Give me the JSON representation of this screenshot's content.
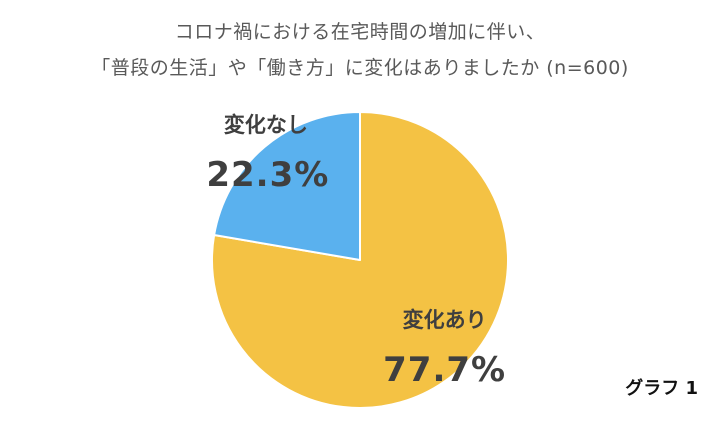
{
  "chart_data": {
    "type": "pie",
    "title_lines": [
      "コロナ禍における在宅時間の増加に伴い、",
      "「普段の生活」や「働き方」に変化はありましたか (n=600)"
    ],
    "slices": [
      {
        "label": "変化あり",
        "value": 77.7,
        "value_label": "77.7%",
        "color": "#F4C244"
      },
      {
        "label": "変化なし",
        "value": 22.3,
        "value_label": "22.3%",
        "color": "#5AB1EE"
      }
    ],
    "start": "12 o'clock",
    "direction": "clockwise"
  },
  "caption": "グラフ 1"
}
